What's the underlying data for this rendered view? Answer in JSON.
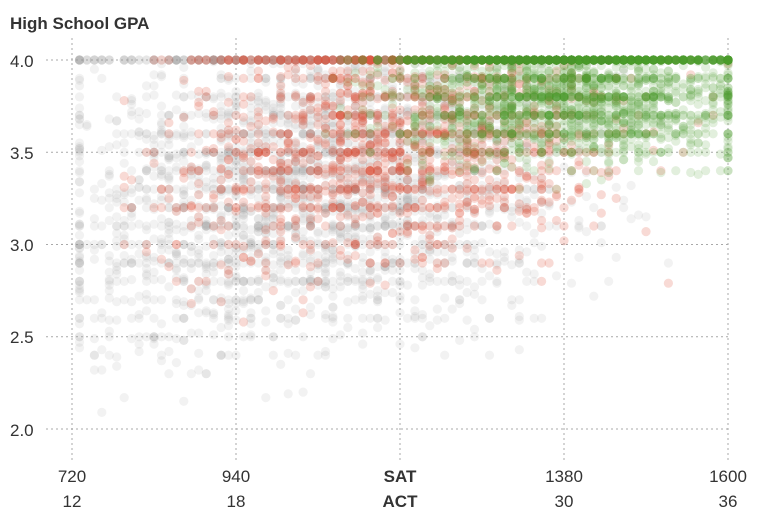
{
  "chart_data": {
    "type": "scatter",
    "title": "High School GPA",
    "ylim": [
      2.0,
      4.0
    ],
    "xlim": [
      720,
      1600
    ],
    "y_ticks": [
      "4.0",
      "3.5",
      "3.0",
      "2.5",
      "2.0"
    ],
    "y_tick_values": [
      4.0,
      3.5,
      3.0,
      2.5,
      2.0
    ],
    "x_ticks_sat": [
      "720",
      "940",
      "SAT",
      "1380",
      "1600"
    ],
    "x_ticks_act": [
      "12",
      "18",
      "ACT",
      "30",
      "36"
    ],
    "x_tick_values": [
      720,
      940,
      1160,
      1380,
      1600
    ],
    "grid": true,
    "series_colors": {
      "gray": "#9e9e9e",
      "red": "#e0553f",
      "green": "#4c9a2a"
    },
    "series_description": [
      {
        "color_key": "gray",
        "approx_points": 3000,
        "x_range": [
          720,
          1600
        ],
        "y_range": [
          2.0,
          4.0
        ]
      },
      {
        "color_key": "red",
        "approx_points": 1600,
        "x_range": [
          790,
          1600
        ],
        "y_range": [
          2.0,
          4.0
        ]
      },
      {
        "color_key": "green",
        "approx_points": 2600,
        "x_range": [
          1000,
          1600
        ],
        "y_range": [
          2.1,
          4.0
        ]
      }
    ]
  }
}
